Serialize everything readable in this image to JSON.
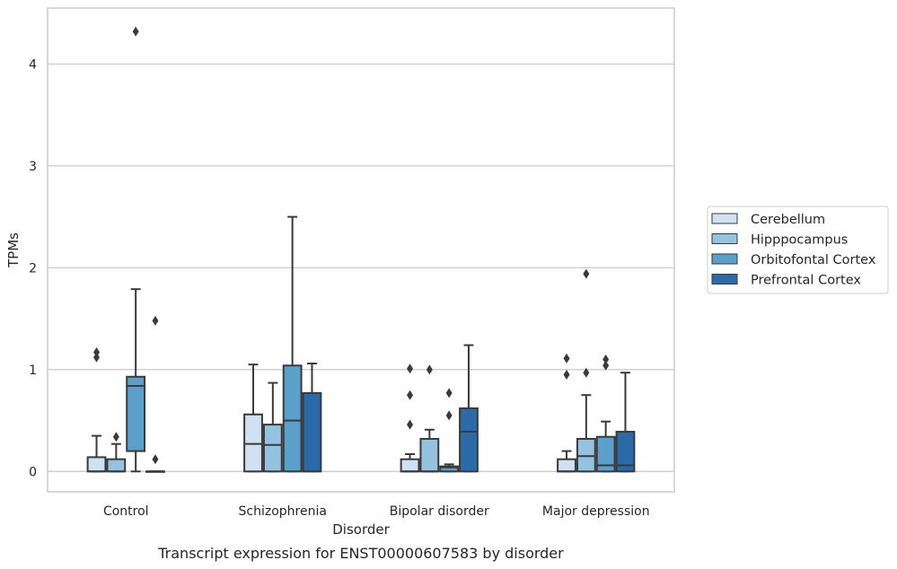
{
  "chart_data": {
    "type": "box",
    "xlabel": "Disorder",
    "ylabel": "TPMs",
    "caption": "Transcript expression for ENST00000607583 by disorder",
    "ylim": [
      -0.2,
      4.55
    ],
    "yticks": [
      0,
      1,
      2,
      3,
      4
    ],
    "grid": "horizontal",
    "legend_position": "right",
    "categories": [
      "Control",
      "Schizophrenia",
      "Bipolar disorder",
      "Major depression"
    ],
    "series": [
      {
        "name": "Cerebellum",
        "color": "#cfe1f2",
        "boxes": [
          {
            "q1": 0.0,
            "median": 0.0,
            "q3": 0.14,
            "whisker_low": 0.0,
            "whisker_high": 0.35,
            "outliers": [
              1.12,
              1.17
            ]
          },
          {
            "q1": 0.0,
            "median": 0.27,
            "q3": 0.56,
            "whisker_low": 0.0,
            "whisker_high": 1.05,
            "outliers": []
          },
          {
            "q1": 0.0,
            "median": 0.0,
            "q3": 0.12,
            "whisker_low": 0.0,
            "whisker_high": 0.17,
            "outliers": [
              0.46,
              0.75,
              1.01
            ]
          },
          {
            "q1": 0.0,
            "median": 0.0,
            "q3": 0.12,
            "whisker_low": 0.0,
            "whisker_high": 0.2,
            "outliers": [
              0.95,
              1.11
            ]
          }
        ]
      },
      {
        "name": "Hipppocampus",
        "color": "#93c3df",
        "boxes": [
          {
            "q1": 0.0,
            "median": 0.0,
            "q3": 0.12,
            "whisker_low": 0.0,
            "whisker_high": 0.27,
            "outliers": [
              0.34
            ]
          },
          {
            "q1": 0.0,
            "median": 0.26,
            "q3": 0.46,
            "whisker_low": 0.0,
            "whisker_high": 0.87,
            "outliers": []
          },
          {
            "q1": 0.0,
            "median": 0.0,
            "q3": 0.32,
            "whisker_low": 0.0,
            "whisker_high": 0.41,
            "outliers": [
              1.0
            ]
          },
          {
            "q1": 0.0,
            "median": 0.15,
            "q3": 0.32,
            "whisker_low": 0.0,
            "whisker_high": 0.75,
            "outliers": [
              0.97,
              1.94
            ]
          }
        ]
      },
      {
        "name": "Orbitofontal Cortex",
        "color": "#5b9fcb",
        "boxes": [
          {
            "q1": 0.2,
            "median": 0.84,
            "q3": 0.93,
            "whisker_low": 0.0,
            "whisker_high": 1.79,
            "outliers": [
              4.32
            ]
          },
          {
            "q1": 0.0,
            "median": 0.5,
            "q3": 1.04,
            "whisker_low": 0.0,
            "whisker_high": 2.5,
            "outliers": []
          },
          {
            "q1": 0.0,
            "median": 0.04,
            "q3": 0.05,
            "whisker_low": 0.0,
            "whisker_high": 0.07,
            "outliers": [
              0.55,
              0.77
            ]
          },
          {
            "q1": 0.0,
            "median": 0.06,
            "q3": 0.34,
            "whisker_low": 0.0,
            "whisker_high": 0.49,
            "outliers": [
              1.04,
              1.1
            ]
          }
        ]
      },
      {
        "name": "Prefrontal Cortex",
        "color": "#2b6aa8",
        "boxes": [
          {
            "q1": 0.0,
            "median": 0.0,
            "q3": 0.0,
            "whisker_low": 0.0,
            "whisker_high": 0.0,
            "outliers": [
              0.12,
              1.48
            ]
          },
          {
            "q1": 0.0,
            "median": 0.0,
            "q3": 0.77,
            "whisker_low": 0.0,
            "whisker_high": 1.06,
            "outliers": []
          },
          {
            "q1": 0.0,
            "median": 0.39,
            "q3": 0.62,
            "whisker_low": 0.0,
            "whisker_high": 1.24,
            "outliers": []
          },
          {
            "q1": 0.0,
            "median": 0.06,
            "q3": 0.39,
            "whisker_low": 0.0,
            "whisker_high": 0.97,
            "outliers": []
          }
        ]
      }
    ]
  }
}
